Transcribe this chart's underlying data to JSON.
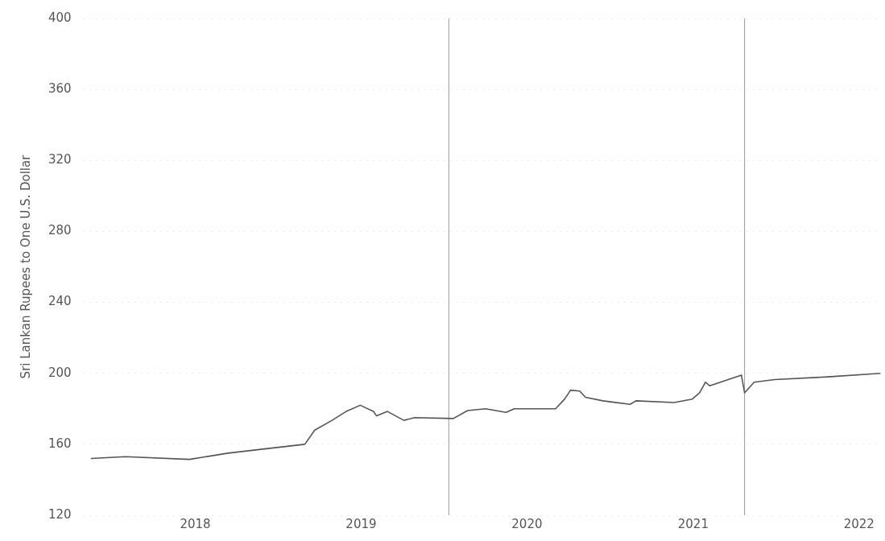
{
  "chart_data": {
    "type": "line",
    "ylabel": "Sri Lankan Rupees to One U.S. Dollar",
    "x": [
      "2017-05-16",
      "2017-07-31",
      "2017-12-19",
      "2018-03-14",
      "2018-06-06",
      "2018-08-30",
      "2018-09-21",
      "2018-10-29",
      "2018-11-29",
      "2018-12-30",
      "2019-01-28",
      "2019-02-04",
      "2019-02-28",
      "2019-04-05",
      "2019-04-29",
      "2019-07-23",
      "2019-08-23",
      "2019-10-02",
      "2019-11-16",
      "2019-12-04",
      "2020-03-04",
      "2020-03-24",
      "2020-04-06",
      "2020-04-26",
      "2020-05-09",
      "2020-06-16",
      "2020-08-15",
      "2020-08-28",
      "2020-11-20",
      "2020-12-30",
      "2021-01-15",
      "2021-01-28",
      "2021-02-06",
      "2021-04-17",
      "2021-04-24",
      "2021-05-15",
      "2021-06-29",
      "2021-10-24",
      "2022-02-17"
    ],
    "series": [
      {
        "color": "#555555",
        "values": [
          152,
          153,
          151.5,
          155,
          157.5,
          160,
          168,
          173.5,
          178.5,
          182,
          178.5,
          176,
          178.5,
          173.5,
          175,
          174.5,
          179,
          180,
          178,
          180,
          180,
          185.5,
          190.5,
          190,
          186.5,
          184.5,
          182.5,
          184.5,
          183.5,
          185.5,
          189,
          195,
          193,
          199,
          189,
          195,
          196.5,
          198,
          200
        ]
      }
    ],
    "xlim": [
      "2017-04-28",
      "2022-02-20"
    ],
    "xticks": [
      {
        "value": "2018-01-01",
        "label": "2018"
      },
      {
        "value": "2019-01-01",
        "label": "2019"
      },
      {
        "value": "2020-01-01",
        "label": "2020"
      },
      {
        "value": "2021-01-01",
        "label": "2021"
      },
      {
        "value": "2022-01-01",
        "label": "2022"
      }
    ],
    "ylim": [
      120,
      400
    ],
    "yticks": [
      120,
      160,
      200,
      240,
      280,
      320,
      360,
      400
    ],
    "ref_lines": [
      {
        "axis": "x",
        "value": "2019-07-13",
        "color": "#999999"
      },
      {
        "axis": "x",
        "value": "2021-04-24",
        "color": "#999999"
      }
    ],
    "grid": "y",
    "legend": false,
    "marker": "none",
    "line_style": "solid"
  }
}
